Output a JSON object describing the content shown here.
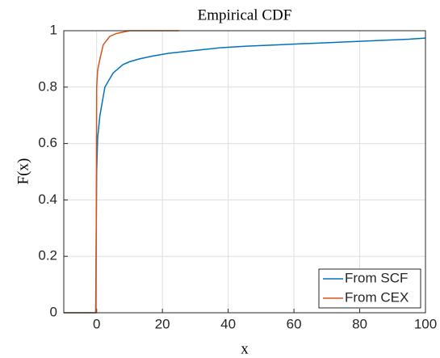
{
  "chart_data": {
    "type": "line",
    "title": "Empirical CDF",
    "x_label": "x",
    "y_label": "F(x)",
    "series": [
      {
        "name": "From SCF",
        "color": "#0072bd",
        "x": [
          -10,
          -0.3,
          0,
          0.3,
          1,
          2.5,
          5,
          8,
          10,
          13,
          17,
          22,
          30,
          38,
          45,
          55,
          65,
          75,
          85,
          95,
          100
        ],
        "values": [
          0,
          0,
          0.5,
          0.62,
          0.7,
          0.8,
          0.85,
          0.88,
          0.89,
          0.9,
          0.91,
          0.92,
          0.93,
          0.94,
          0.945,
          0.95,
          0.955,
          0.96,
          0.965,
          0.97,
          0.974
        ]
      },
      {
        "name": "From CEX",
        "color": "#d95319",
        "x": [
          -10,
          -0.2,
          0,
          0.3,
          1,
          2,
          4,
          6,
          10,
          25
        ],
        "values": [
          0,
          0,
          0.8,
          0.86,
          0.9,
          0.95,
          0.98,
          0.99,
          1,
          1
        ]
      }
    ],
    "xlim": [
      -10,
      100
    ],
    "xticks": [
      0,
      20,
      40,
      60,
      80,
      100
    ],
    "ylim": [
      0,
      1
    ],
    "yticks": [
      0,
      0.2,
      0.4,
      0.6,
      0.8,
      1
    ],
    "grid": true,
    "legend_position": "lower-right"
  }
}
